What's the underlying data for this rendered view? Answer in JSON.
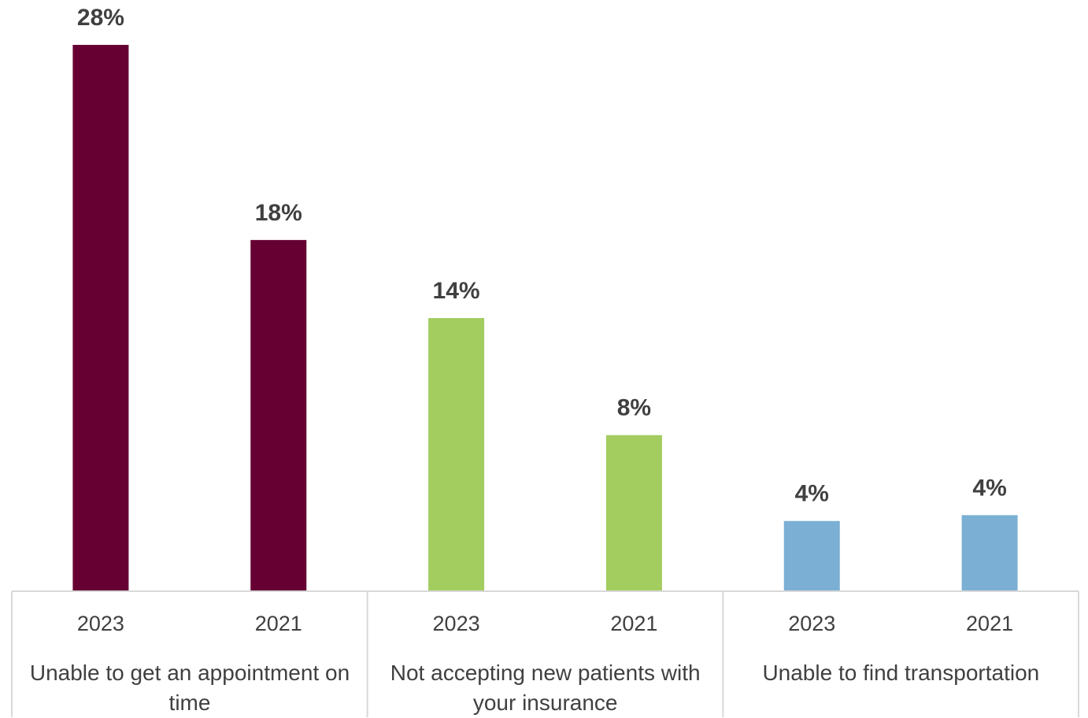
{
  "chart_data": {
    "type": "bar",
    "groups": [
      {
        "name": "Unable to get an appointment on time",
        "categories": [
          "2023",
          "2021"
        ],
        "values": [
          28,
          18
        ],
        "value_labels": [
          "28%",
          "18%"
        ],
        "color": "#660033"
      },
      {
        "name": "Not accepting new patients with your insurance",
        "categories": [
          "2023",
          "2021"
        ],
        "values": [
          14,
          8
        ],
        "value_labels": [
          "14%",
          "8%"
        ],
        "color": "#a3cd5f"
      },
      {
        "name": "Unable to find transportation",
        "categories": [
          "2023",
          "2021"
        ],
        "values": [
          3.6,
          3.9
        ],
        "value_labels": [
          "4%",
          "4%"
        ],
        "color": "#7bafd4"
      }
    ]
  }
}
